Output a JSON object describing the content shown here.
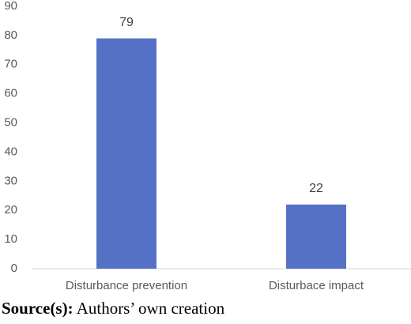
{
  "chart_data": {
    "type": "bar",
    "categories": [
      "Disturbance prevention",
      "Disturbace impact"
    ],
    "values": [
      79,
      22
    ],
    "color": "#5571c6",
    "ylim": [
      0,
      90
    ],
    "yticks": [
      0,
      10,
      20,
      30,
      40,
      50,
      60,
      70,
      80,
      90
    ],
    "grid": false,
    "source_label": "Source(s):",
    "source": "Authors’ own creation"
  }
}
